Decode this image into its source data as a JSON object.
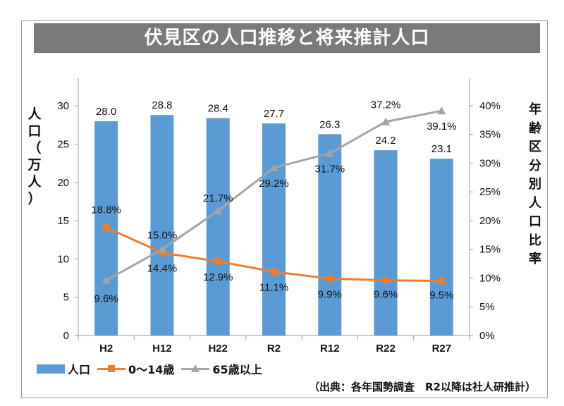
{
  "title": "伏見区の人口推移と将来推計人口",
  "source_note": "（出典：各年国勢調査　R2以降は社人研推計）",
  "colors": {
    "population_bar": "#5b9bd5",
    "age_0_14": "#ed7d31",
    "age_65_plus": "#a5a5a5",
    "title_bg": "#7a7a7a"
  },
  "chart_data": {
    "type": "bar",
    "categories": [
      "H2",
      "H12",
      "H22",
      "R2",
      "R12",
      "R22",
      "R27"
    ],
    "ylabel_left": "人口（万人）",
    "ylabel_right": "年齢区分別人口比率",
    "ylim_left": [
      0,
      30
    ],
    "yticks_left": [
      "0",
      "5",
      "10",
      "15",
      "20",
      "25",
      "30"
    ],
    "ylim_right": [
      0,
      40
    ],
    "yticks_right": [
      "0%",
      "5%",
      "10%",
      "15%",
      "20%",
      "25%",
      "30%",
      "35%",
      "40%"
    ],
    "grid": false,
    "legend_position": "bottom",
    "series": [
      {
        "name": "人口",
        "type": "bar",
        "axis": "left",
        "values": [
          28.0,
          28.8,
          28.4,
          27.7,
          26.3,
          24.2,
          23.1
        ],
        "labels": [
          "28.0",
          "28.8",
          "28.4",
          "27.7",
          "26.3",
          "24.2",
          "23.1"
        ]
      },
      {
        "name": "0～14歳",
        "type": "line",
        "axis": "right",
        "marker": "square",
        "values": [
          18.8,
          14.4,
          12.9,
          11.1,
          9.9,
          9.6,
          9.5
        ],
        "labels": [
          "18.8%",
          "14.4%",
          "12.9%",
          "11.1%",
          "9.9%",
          "9.6%",
          "9.5%"
        ]
      },
      {
        "name": "65歳以上",
        "type": "line",
        "axis": "right",
        "marker": "triangle",
        "values": [
          9.6,
          15.0,
          21.7,
          29.2,
          31.7,
          37.2,
          39.1
        ],
        "labels": [
          "9.6%",
          "15.0%",
          "21.7%",
          "29.2%",
          "31.7%",
          "37.2%",
          "39.1%"
        ]
      }
    ]
  }
}
